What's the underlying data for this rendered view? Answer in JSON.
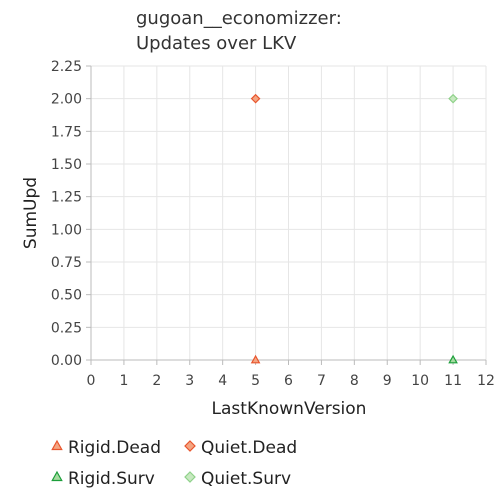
{
  "chart_data": {
    "type": "scatter",
    "title_lines": [
      "gugoan__economizzer:",
      "Updates over LKV"
    ],
    "xlabel": "LastKnownVersion",
    "ylabel": "SumUpd",
    "xlim": [
      0,
      12
    ],
    "ylim": [
      0,
      2.25
    ],
    "x_ticks": [
      "0",
      "1",
      "2",
      "3",
      "4",
      "5",
      "6",
      "7",
      "8",
      "9",
      "10",
      "11",
      "12"
    ],
    "y_ticks": [
      "0.00",
      "0.25",
      "0.50",
      "0.75",
      "1.00",
      "1.25",
      "1.50",
      "1.75",
      "2.00",
      "2.25"
    ],
    "grid": true,
    "legend_position": "bottom",
    "series": [
      {
        "name": "Rigid.Dead",
        "marker": "triangle",
        "color": "#f4a582",
        "stroke": "#e8552d",
        "points": [
          {
            "x": 5,
            "y": 0
          }
        ]
      },
      {
        "name": "Quiet.Dead",
        "marker": "diamond",
        "color": "#f4a582",
        "stroke": "#e8552d",
        "points": [
          {
            "x": 5,
            "y": 2
          }
        ]
      },
      {
        "name": "Rigid.Surv",
        "marker": "triangle",
        "color": "#a6dba0",
        "stroke": "#1b9e3a",
        "points": [
          {
            "x": 11,
            "y": 0
          }
        ]
      },
      {
        "name": "Quiet.Surv",
        "marker": "diamond",
        "color": "#c7e9c0",
        "stroke": "#8fd18a",
        "points": [
          {
            "x": 11,
            "y": 2
          }
        ]
      }
    ]
  }
}
